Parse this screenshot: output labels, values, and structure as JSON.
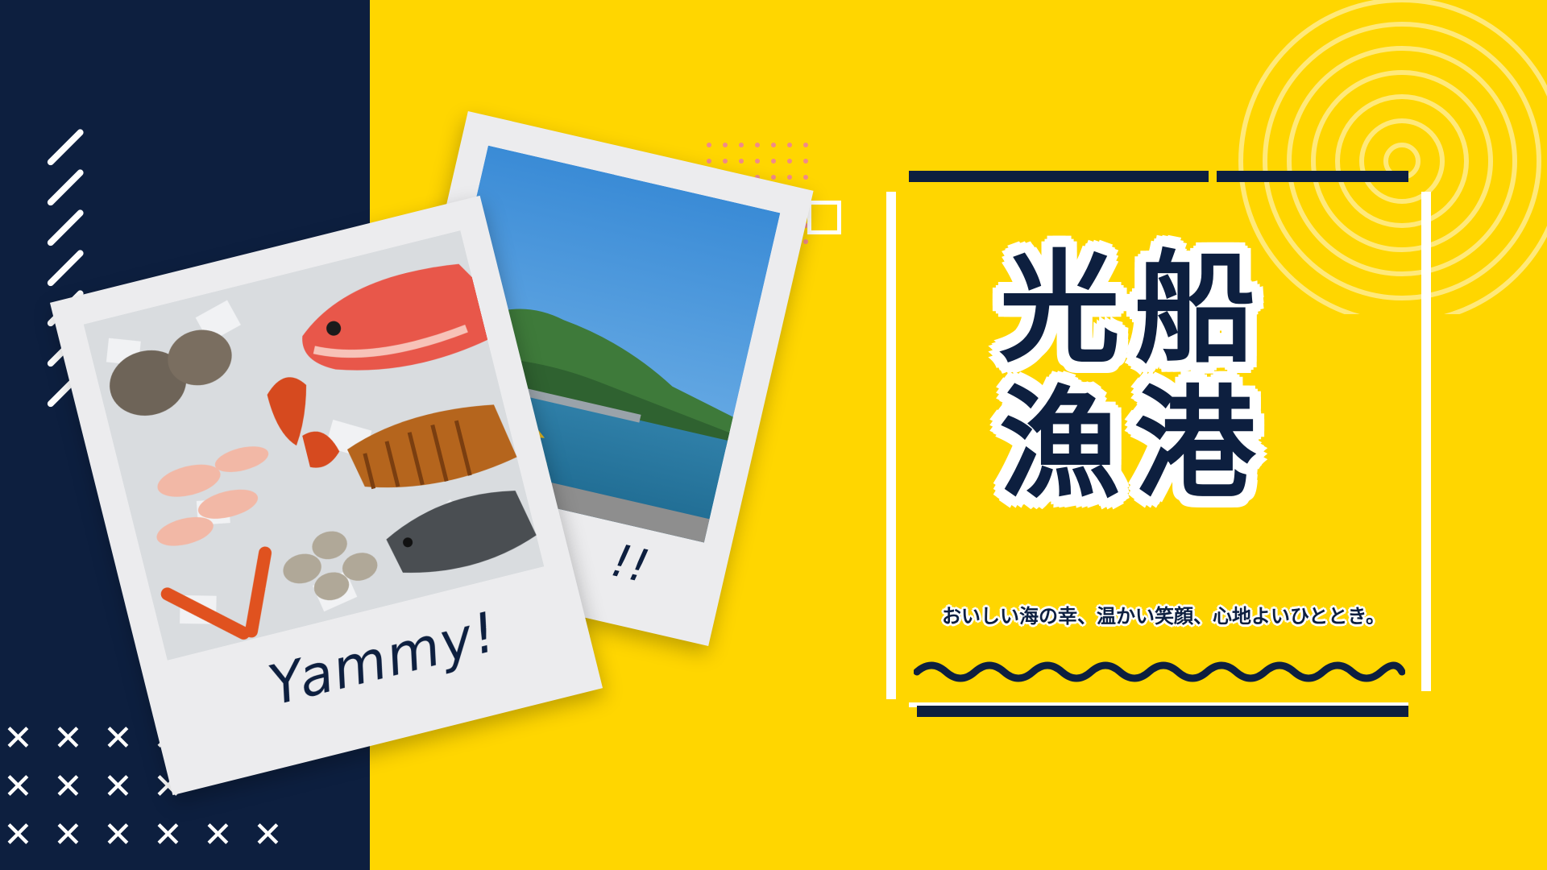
{
  "title": {
    "line1": "光船",
    "line2": "漁港"
  },
  "tagline": "おいしい海の幸、温かい笑顔、心地よいひととき。",
  "polaroid_front": {
    "caption": "Yammy!",
    "photo": "seafood-on-ice"
  },
  "polaroid_back": {
    "caption": "!!",
    "photo": "harbor-view"
  },
  "colors": {
    "yellow": "#FFD600",
    "navy": "#0D1F3F",
    "white": "#FFFFFF",
    "pink": "#F08A8A"
  }
}
